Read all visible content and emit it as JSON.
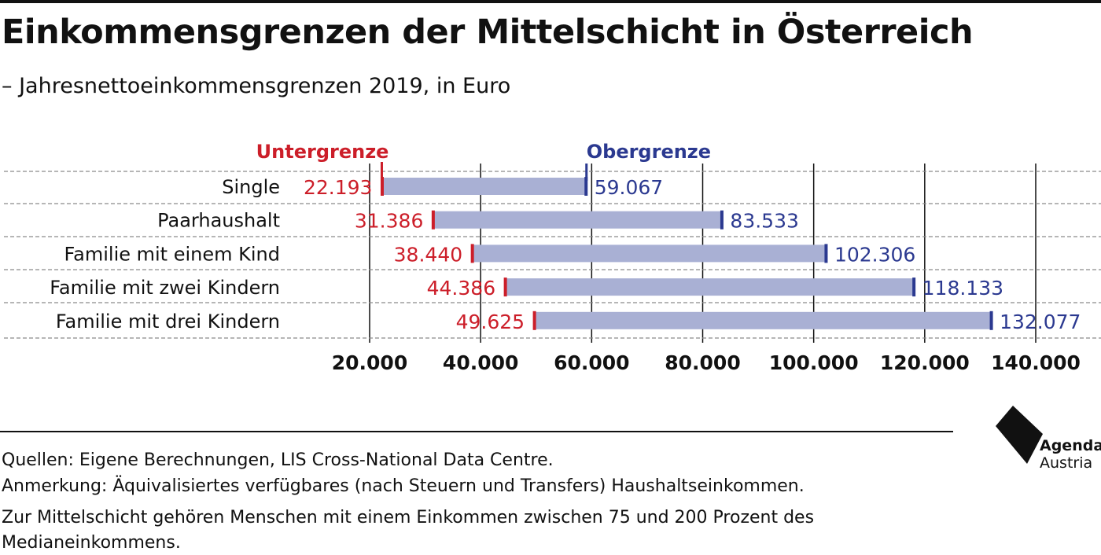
{
  "header": {
    "title": "Einkommensgrenzen der Mittelschicht in Österreich",
    "subtitle": "– Jahresnettoeinkommensgrenzen 2019, in Euro"
  },
  "colors": {
    "lower": "#cc1e29",
    "upper": "#2b3990",
    "bar": "#a9b0d4",
    "grid": "#111111",
    "row_separator": "#8a8a8a"
  },
  "chart_data": {
    "type": "bar",
    "orientation": "horizontal-range",
    "categories": [
      "Single",
      "Paarhaushalt",
      "Familie mit einem Kind",
      "Familie mit zwei Kindern",
      "Familie mit drei Kindern"
    ],
    "series": [
      {
        "name": "Untergrenze",
        "values": [
          22193,
          31386,
          38440,
          44386,
          49625
        ]
      },
      {
        "name": "Obergrenze",
        "values": [
          59067,
          83533,
          102306,
          118133,
          132077
        ]
      }
    ],
    "lower_labels": [
      "22.193",
      "31.386",
      "38.440",
      "44.386",
      "49.625"
    ],
    "upper_labels": [
      "59.067",
      "83.533",
      "102.306",
      "118.133",
      "132.077"
    ],
    "xticks": [
      20000,
      40000,
      60000,
      80000,
      100000,
      120000,
      140000
    ],
    "xtick_labels": [
      "20.000",
      "40.000",
      "60.000",
      "80.000",
      "100.000",
      "120.000",
      "140.000"
    ],
    "xlim": [
      0,
      140000
    ],
    "grid": true,
    "legend": "top, above bars"
  },
  "footer": {
    "lines": [
      "Quellen: Eigene Berechnungen, LIS Cross-National Data Centre.",
      "Anmerkung: Äquivalisiertes verfügbares (nach Steuern und Transfers) Haushaltseinkommen.",
      "Zur Mittelschicht gehören Menschen mit einem Einkommen zwischen 75 und 200 Prozent des",
      "Medianeinkommens."
    ]
  },
  "logo": {
    "icon": "agenda-austria-logo-icon",
    "line1": "Agenda",
    "line2": "Austria"
  }
}
